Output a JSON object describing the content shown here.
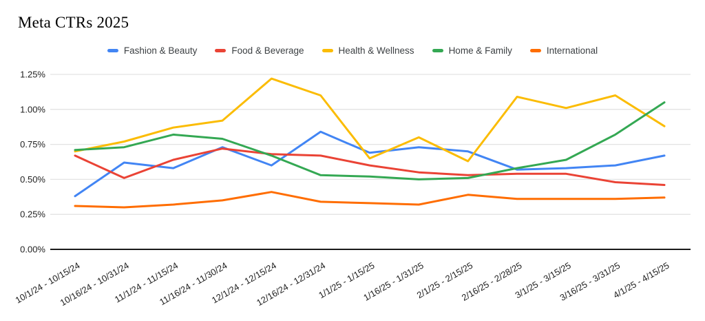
{
  "title": "Meta CTRs 2025",
  "chart_data": {
    "type": "line",
    "title": "Meta CTRs 2025",
    "categories": [
      "10/1/24 - 10/15/24",
      "10/16/24 - 10/31/24",
      "11/1/24 - 11/15/24",
      "11/16/24 - 11/30/24",
      "12/1/24 - 12/15/24",
      "12/16/24 - 12/31/24",
      "1/1/25 - 1/15/25",
      "1/16/25 - 1/31/25",
      "2/1/25 - 2/15/25",
      "2/16/25 - 2/28/25",
      "3/1/25 - 3/15/25",
      "3/16/25 - 3/31/25",
      "4/1/25 - 4/15/25"
    ],
    "series": [
      {
        "name": "Fashion & Beauty",
        "color": "#4285F4",
        "values": [
          0.38,
          0.62,
          0.58,
          0.73,
          0.6,
          0.84,
          0.69,
          0.73,
          0.7,
          0.57,
          0.58,
          0.6,
          0.67
        ]
      },
      {
        "name": "Food & Beverage",
        "color": "#EA4335",
        "values": [
          0.67,
          0.51,
          0.64,
          0.72,
          0.68,
          0.67,
          0.6,
          0.55,
          0.53,
          0.54,
          0.54,
          0.48,
          0.46
        ]
      },
      {
        "name": "Health & Wellness",
        "color": "#FBBC04",
        "values": [
          0.7,
          0.77,
          0.87,
          0.92,
          1.22,
          1.1,
          0.65,
          0.8,
          0.63,
          1.09,
          1.01,
          1.1,
          0.88
        ]
      },
      {
        "name": "Home & Family",
        "color": "#34A853",
        "values": [
          0.71,
          0.73,
          0.82,
          0.79,
          0.67,
          0.53,
          0.52,
          0.5,
          0.51,
          0.58,
          0.64,
          0.82,
          1.05
        ]
      },
      {
        "name": "International",
        "color": "#FF6D01",
        "values": [
          0.31,
          0.3,
          0.32,
          0.35,
          0.41,
          0.34,
          0.33,
          0.32,
          0.39,
          0.36,
          0.36,
          0.36,
          0.37
        ]
      }
    ],
    "y_axis": {
      "tick_labels": [
        "0.00%",
        "0.25%",
        "0.50%",
        "0.75%",
        "1.00%",
        "1.25%"
      ],
      "tick_values": [
        0,
        0.25,
        0.5,
        0.75,
        1.0,
        1.25
      ],
      "min": 0,
      "max": 1.25,
      "unit": "%"
    },
    "legend_position": "top",
    "grid": true
  },
  "colors": {
    "background": "#ffffff",
    "gridline": "#e3e3e3",
    "axis_line": "#1a1a1a",
    "axis_text": "#1f1f1f",
    "legend_text": "#3c4043",
    "title_text": "#000000"
  }
}
